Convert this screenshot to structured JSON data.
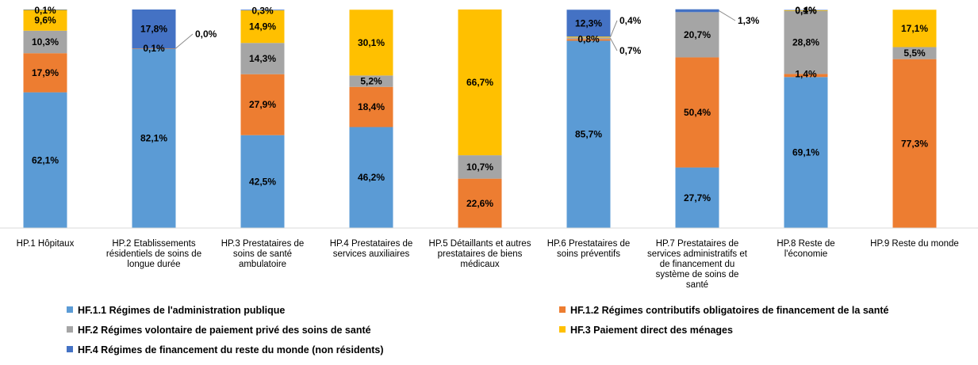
{
  "chart_data": {
    "type": "bar",
    "stacked": true,
    "percent": true,
    "ylim": [
      0,
      100
    ],
    "grid": false,
    "legend_position": "bottom",
    "categories": [
      [
        "HP.1 Hôpitaux"
      ],
      [
        "HP.2 Etablissements",
        "résidentiels de soins de",
        "longue durée"
      ],
      [
        "HP.3 Prestataires de",
        "soins de santé",
        "ambulatoire"
      ],
      [
        "HP.4 Prestataires de",
        "services auxiliaires"
      ],
      [
        "HP.5 Détaillants et autres",
        "prestataires de biens",
        "médicaux"
      ],
      [
        "HP.6 Prestataires de",
        "soins préventifs"
      ],
      [
        "HP.7 Prestataires de",
        "services administratifs et",
        "de financement du",
        "système de soins de",
        "santé"
      ],
      [
        "HP.8 Reste de",
        "l'économie"
      ],
      [
        "HP.9 Reste du monde"
      ]
    ],
    "series": [
      {
        "name": "HF.1.1 Régimes de l'administration publique",
        "color": "#5B9BD5",
        "values": [
          62.1,
          82.1,
          42.5,
          46.2,
          0,
          85.7,
          27.7,
          69.1,
          0
        ],
        "labels": [
          "62,1%",
          "82,1%",
          "42,5%",
          "46,2%",
          "",
          "85,7%",
          "27,7%",
          "69,1%",
          ""
        ]
      },
      {
        "name": "HF.1.2 Régimes contributifs obligatoires de financement de la santé",
        "color": "#ED7D31",
        "values": [
          17.9,
          0.1,
          27.9,
          18.4,
          22.6,
          0.8,
          50.4,
          1.4,
          77.3
        ],
        "labels": [
          "17,9%",
          "0,1%",
          "27,9%",
          "18,4%",
          "22,6%",
          "0,8%",
          "50,4%",
          "1,4%",
          "77,3%"
        ]
      },
      {
        "name": "HF.2 Régimes volontaire de paiement privé des soins de santé",
        "color": "#A5A5A5",
        "values": [
          10.3,
          0.0,
          14.3,
          5.2,
          10.7,
          0.7,
          20.7,
          28.8,
          5.5
        ],
        "labels": [
          "10,3%",
          "0,0%",
          "14,3%",
          "5,2%",
          "10,7%",
          "0,7%",
          "20,7%",
          "28,8%",
          "5,5%"
        ]
      },
      {
        "name": "HF.3 Paiement direct des ménages",
        "color": "#FFC000",
        "values": [
          9.6,
          0,
          14.9,
          30.1,
          66.7,
          0.4,
          0,
          0.4,
          17.1
        ],
        "labels": [
          "9,6%",
          "",
          "14,9%",
          "30,1%",
          "66,7%",
          "0,4%",
          "",
          "0,4%",
          "17,1%"
        ]
      },
      {
        "name": "HF.4 Régimes de financement du reste du monde (non résidents)",
        "color": "#4472C4",
        "values": [
          0.1,
          17.8,
          0.3,
          0,
          0,
          12.3,
          1.3,
          0.1,
          0
        ],
        "labels": [
          "0,1%",
          "17,8%",
          "0,3%",
          "",
          "",
          "12,3%",
          "1,3%",
          "0,1%",
          ""
        ]
      }
    ]
  }
}
